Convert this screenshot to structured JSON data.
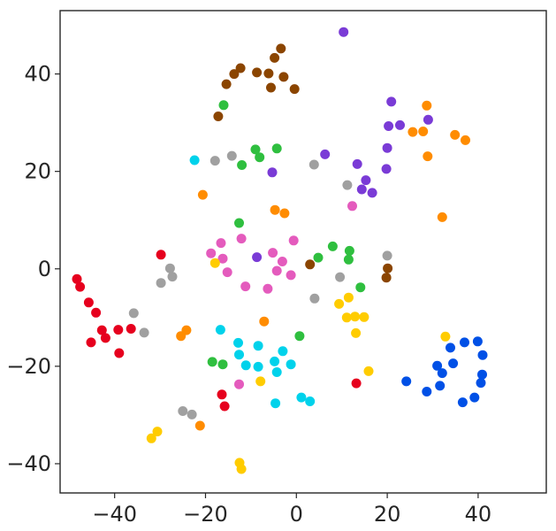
{
  "chart_data": {
    "type": "scatter",
    "title": "",
    "xlabel": "",
    "ylabel": "",
    "xlim": [
      -52,
      55
    ],
    "ylim": [
      -46,
      53
    ],
    "grid": false,
    "legend": "none",
    "x_ticks": [
      -40,
      -20,
      0,
      20,
      40
    ],
    "x_tick_labels": [
      "−40",
      "−20",
      "0",
      "20",
      "40"
    ],
    "y_ticks": [
      -40,
      -20,
      0,
      20,
      40
    ],
    "y_tick_labels": [
      "−40",
      "−20",
      "0",
      "20",
      "40"
    ],
    "series": [
      {
        "color": "#e6001e",
        "points": [
          [
            -48.3,
            -2.1
          ],
          [
            -47.6,
            -3.7
          ],
          [
            -45.7,
            -6.9
          ],
          [
            -44.1,
            -9.0
          ],
          [
            -42.8,
            -12.6
          ],
          [
            -42.0,
            -14.2
          ],
          [
            -45.2,
            -15.1
          ],
          [
            -39.2,
            -12.5
          ],
          [
            -36.4,
            -12.3
          ],
          [
            -39.0,
            -17.3
          ],
          [
            -29.8,
            2.9
          ],
          [
            -16.4,
            -25.8
          ],
          [
            -15.8,
            -28.2
          ],
          [
            13.2,
            -23.5
          ]
        ]
      },
      {
        "color": "#a0a0a0",
        "points": [
          [
            -35.8,
            -9.1
          ],
          [
            -33.5,
            -13.1
          ],
          [
            -27.8,
            0.1
          ],
          [
            -27.3,
            -1.6
          ],
          [
            -29.8,
            -2.9
          ],
          [
            -25.0,
            -29.2
          ],
          [
            -23.0,
            -29.9
          ],
          [
            -17.9,
            22.2
          ],
          [
            -14.2,
            23.2
          ],
          [
            3.9,
            21.4
          ],
          [
            11.2,
            17.2
          ],
          [
            20.0,
            2.7
          ],
          [
            9.6,
            -1.7
          ],
          [
            4.0,
            -6.1
          ]
        ]
      },
      {
        "color": "#2fbf3f",
        "points": [
          [
            -16.0,
            33.6
          ],
          [
            -12.0,
            21.3
          ],
          [
            -9.0,
            24.5
          ],
          [
            -8.1,
            22.9
          ],
          [
            -4.3,
            24.7
          ],
          [
            -12.6,
            9.4
          ],
          [
            8.0,
            4.6
          ],
          [
            4.8,
            2.3
          ],
          [
            11.7,
            3.7
          ],
          [
            11.5,
            1.9
          ],
          [
            14.1,
            -3.8
          ],
          [
            0.7,
            -13.8
          ],
          [
            -18.5,
            -19.1
          ],
          [
            -16.2,
            -19.6
          ]
        ]
      },
      {
        "color": "#00d2eb",
        "points": [
          [
            -22.4,
            22.3
          ],
          [
            -16.7,
            -12.5
          ],
          [
            -12.8,
            -15.2
          ],
          [
            -12.6,
            -17.6
          ],
          [
            -11.1,
            -19.8
          ],
          [
            -8.4,
            -15.8
          ],
          [
            -8.4,
            -20.1
          ],
          [
            -4.8,
            -19.0
          ],
          [
            -3.0,
            -16.9
          ],
          [
            -1.2,
            -19.6
          ],
          [
            -4.3,
            -21.2
          ],
          [
            -4.6,
            -27.6
          ],
          [
            1.1,
            -26.4
          ],
          [
            3.0,
            -27.2
          ]
        ]
      },
      {
        "color": "#7a3bd6",
        "points": [
          [
            10.4,
            48.6
          ],
          [
            20.9,
            34.3
          ],
          [
            20.3,
            29.3
          ],
          [
            22.8,
            29.5
          ],
          [
            29.0,
            30.6
          ],
          [
            20.0,
            24.8
          ],
          [
            6.3,
            23.5
          ],
          [
            13.4,
            21.5
          ],
          [
            19.8,
            20.5
          ],
          [
            15.3,
            18.2
          ],
          [
            14.4,
            16.3
          ],
          [
            16.7,
            15.6
          ],
          [
            -5.3,
            19.8
          ],
          [
            -8.7,
            2.4
          ]
        ]
      },
      {
        "color": "#ff8c00",
        "points": [
          [
            28.7,
            33.5
          ],
          [
            25.6,
            28.1
          ],
          [
            27.9,
            28.2
          ],
          [
            28.9,
            23.1
          ],
          [
            34.9,
            27.5
          ],
          [
            37.2,
            26.4
          ],
          [
            32.1,
            10.6
          ],
          [
            -20.6,
            15.2
          ],
          [
            -4.7,
            12.1
          ],
          [
            -2.6,
            11.4
          ],
          [
            -7.1,
            -10.8
          ],
          [
            -24.2,
            -12.6
          ],
          [
            -25.4,
            -13.8
          ],
          [
            -21.2,
            -32.2
          ]
        ]
      },
      {
        "color": "#e45bbd",
        "points": [
          [
            12.3,
            12.9
          ],
          [
            -18.8,
            3.2
          ],
          [
            -16.6,
            5.3
          ],
          [
            -12.1,
            6.2
          ],
          [
            -0.6,
            5.8
          ],
          [
            -16.2,
            2.1
          ],
          [
            -15.2,
            -0.7
          ],
          [
            -11.2,
            -3.6
          ],
          [
            -6.3,
            -4.1
          ],
          [
            -5.2,
            3.3
          ],
          [
            -4.3,
            -0.4
          ],
          [
            -3.1,
            1.5
          ],
          [
            -1.2,
            -1.3
          ],
          [
            -12.6,
            -23.7
          ]
        ]
      },
      {
        "color": "#0050e6",
        "points": [
          [
            24.2,
            -23.1
          ],
          [
            28.7,
            -25.2
          ],
          [
            31.0,
            -19.9
          ],
          [
            31.6,
            -24.0
          ],
          [
            32.1,
            -21.4
          ],
          [
            33.9,
            -16.2
          ],
          [
            34.5,
            -19.4
          ],
          [
            37.0,
            -15.1
          ],
          [
            39.9,
            -14.9
          ],
          [
            41.0,
            -17.7
          ],
          [
            40.9,
            -21.7
          ],
          [
            40.6,
            -23.4
          ],
          [
            39.2,
            -26.4
          ],
          [
            36.6,
            -27.4
          ]
        ]
      },
      {
        "color": "#ffcc00",
        "points": [
          [
            -17.9,
            1.2
          ],
          [
            9.4,
            -7.2
          ],
          [
            11.5,
            -5.9
          ],
          [
            12.9,
            -9.8
          ],
          [
            14.9,
            -9.9
          ],
          [
            11.1,
            -10.0
          ],
          [
            13.1,
            -13.2
          ],
          [
            -7.9,
            -23.1
          ],
          [
            15.9,
            -21.0
          ],
          [
            32.8,
            -13.9
          ],
          [
            -31.9,
            -34.8
          ],
          [
            -30.6,
            -33.4
          ],
          [
            -12.5,
            -39.8
          ],
          [
            -12.1,
            -41.1
          ]
        ]
      },
      {
        "color": "#8b4500",
        "points": [
          [
            -3.4,
            45.2
          ],
          [
            -4.8,
            43.3
          ],
          [
            -12.3,
            41.2
          ],
          [
            -13.7,
            40.0
          ],
          [
            -15.4,
            37.9
          ],
          [
            -17.2,
            31.3
          ],
          [
            -8.7,
            40.3
          ],
          [
            -6.1,
            40.1
          ],
          [
            -5.6,
            37.2
          ],
          [
            -2.8,
            39.4
          ],
          [
            -0.4,
            36.9
          ],
          [
            3.0,
            0.9
          ],
          [
            20.1,
            0.1
          ],
          [
            19.8,
            -1.8
          ]
        ]
      }
    ]
  }
}
